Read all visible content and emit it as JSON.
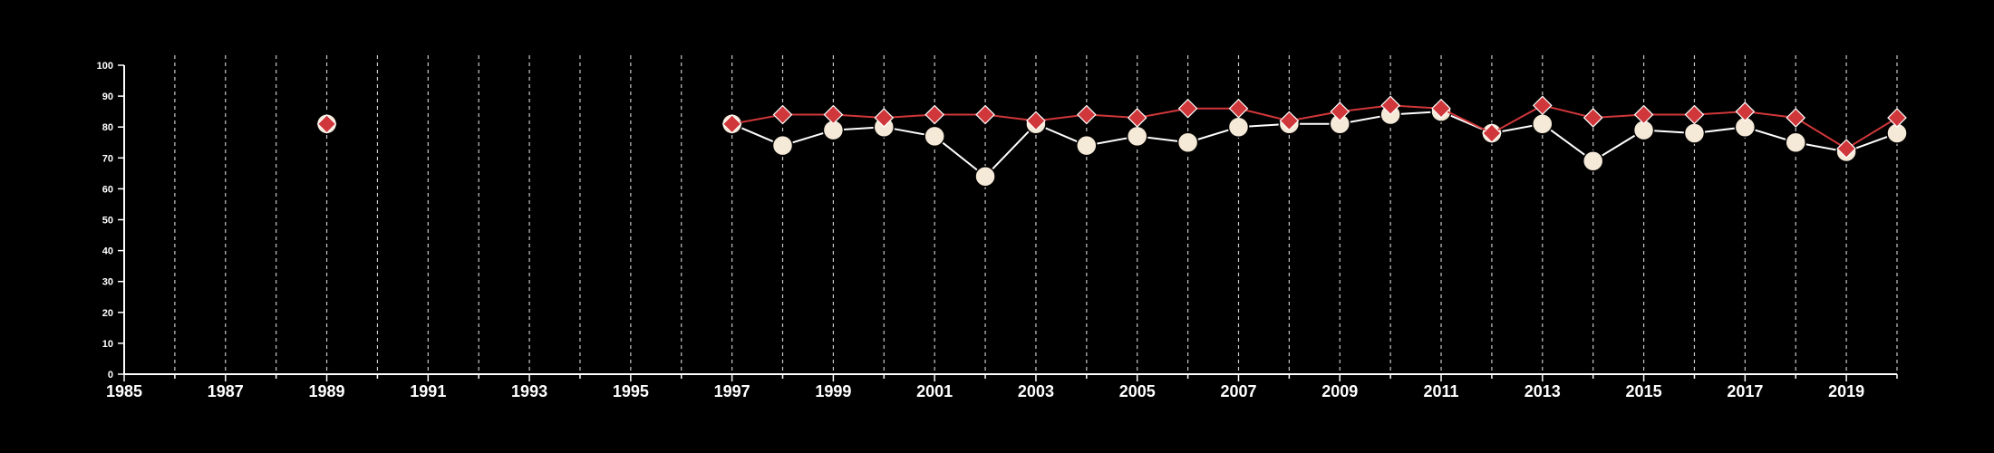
{
  "chart_data": {
    "type": "line",
    "title": "",
    "xlabel": "",
    "ylabel": "",
    "xlim": [
      1985,
      2020
    ],
    "ylim": [
      0,
      100
    ],
    "y_ticks": [
      0,
      10,
      20,
      30,
      40,
      50,
      60,
      70,
      80,
      90,
      100
    ],
    "x_tick_labels": [
      1985,
      1987,
      1989,
      1991,
      1993,
      1995,
      1997,
      1999,
      2001,
      2003,
      2005,
      2007,
      2009,
      2011,
      2013,
      2015,
      2017,
      2019
    ],
    "grid": {
      "vertical": true,
      "horizontal": false,
      "style": "dashed",
      "every_year": true
    },
    "legend": "none",
    "background": "#000000",
    "axis_color": "#ffffff",
    "series": [
      {
        "marker": "circle",
        "color": "#f5e9d8",
        "line_color": "#ffffff",
        "points": [
          {
            "x": 1989,
            "y": 81
          },
          {
            "x": 1997,
            "y": 81
          },
          {
            "x": 1998,
            "y": 74
          },
          {
            "x": 1999,
            "y": 79
          },
          {
            "x": 2000,
            "y": 80
          },
          {
            "x": 2001,
            "y": 77
          },
          {
            "x": 2002,
            "y": 64
          },
          {
            "x": 2003,
            "y": 81
          },
          {
            "x": 2004,
            "y": 74
          },
          {
            "x": 2005,
            "y": 77
          },
          {
            "x": 2006,
            "y": 75
          },
          {
            "x": 2007,
            "y": 80
          },
          {
            "x": 2008,
            "y": 81
          },
          {
            "x": 2009,
            "y": 81
          },
          {
            "x": 2010,
            "y": 84
          },
          {
            "x": 2011,
            "y": 85
          },
          {
            "x": 2012,
            "y": 78
          },
          {
            "x": 2013,
            "y": 81
          },
          {
            "x": 2014,
            "y": 69
          },
          {
            "x": 2015,
            "y": 79
          },
          {
            "x": 2016,
            "y": 78
          },
          {
            "x": 2017,
            "y": 80
          },
          {
            "x": 2018,
            "y": 75
          },
          {
            "x": 2019,
            "y": 72
          },
          {
            "x": 2020,
            "y": 78
          }
        ]
      },
      {
        "marker": "diamond",
        "color": "#d0373a",
        "line_color": "#d0373a",
        "points": [
          {
            "x": 1989,
            "y": 81
          },
          {
            "x": 1997,
            "y": 81
          },
          {
            "x": 1998,
            "y": 84
          },
          {
            "x": 1999,
            "y": 84
          },
          {
            "x": 2000,
            "y": 83
          },
          {
            "x": 2001,
            "y": 84
          },
          {
            "x": 2002,
            "y": 84
          },
          {
            "x": 2003,
            "y": 82
          },
          {
            "x": 2004,
            "y": 84
          },
          {
            "x": 2005,
            "y": 83
          },
          {
            "x": 2006,
            "y": 86
          },
          {
            "x": 2007,
            "y": 86
          },
          {
            "x": 2008,
            "y": 82
          },
          {
            "x": 2009,
            "y": 85
          },
          {
            "x": 2010,
            "y": 87
          },
          {
            "x": 2011,
            "y": 86
          },
          {
            "x": 2012,
            "y": 78
          },
          {
            "x": 2013,
            "y": 87
          },
          {
            "x": 2014,
            "y": 83
          },
          {
            "x": 2015,
            "y": 84
          },
          {
            "x": 2016,
            "y": 84
          },
          {
            "x": 2017,
            "y": 85
          },
          {
            "x": 2018,
            "y": 83
          },
          {
            "x": 2019,
            "y": 73
          },
          {
            "x": 2020,
            "y": 83
          }
        ]
      }
    ]
  }
}
